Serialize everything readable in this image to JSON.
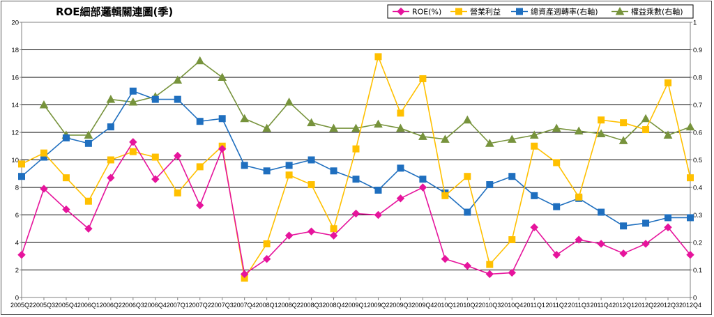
{
  "chart_data": {
    "type": "line",
    "title": "ROE細部邏輯關連圖(季)",
    "xlabel": "",
    "ylabel": "",
    "ylim": [
      0,
      20
    ],
    "y2lim": [
      0,
      1
    ],
    "yticks": [
      0,
      2,
      4,
      6,
      8,
      10,
      12,
      14,
      16,
      18,
      20
    ],
    "y2ticks": [
      0,
      0.1,
      0.2,
      0.3,
      0.4,
      0.5,
      0.6,
      0.7,
      0.8,
      0.9,
      1
    ],
    "grid": true,
    "legend_position": "top-right",
    "categories": [
      "2005Q2",
      "2005Q3",
      "2005Q4",
      "2006Q1",
      "2006Q2",
      "2006Q3",
      "2006Q4",
      "2007Q1",
      "2007Q2",
      "2007Q3",
      "2007Q4",
      "2008Q1",
      "2008Q2",
      "2008Q3",
      "2008Q4",
      "2009Q1",
      "2009Q2",
      "2009Q3",
      "2009Q4",
      "2010Q1",
      "2010Q2",
      "2010Q3",
      "2010Q4",
      "2011Q1",
      "2011Q2",
      "2011Q3",
      "2011Q4",
      "2012Q1",
      "2012Q2",
      "2012Q3",
      "2012Q4"
    ],
    "series": [
      {
        "name": "ROE(%)",
        "axis": "left",
        "color": "#e6149c",
        "marker": "diamond",
        "values": [
          3.1,
          7.9,
          6.4,
          5.0,
          8.7,
          11.3,
          8.6,
          10.3,
          6.7,
          10.8,
          1.7,
          2.8,
          4.5,
          4.8,
          4.5,
          6.1,
          6.0,
          7.2,
          8.0,
          2.8,
          2.3,
          1.7,
          1.8,
          5.1,
          3.1,
          4.2,
          3.9,
          3.2,
          3.9,
          5.1,
          3.1
        ]
      },
      {
        "name": "營業利益",
        "axis": "left",
        "color": "#ffc000",
        "marker": "square",
        "values": [
          9.7,
          10.5,
          8.7,
          7.0,
          10.0,
          10.6,
          10.2,
          7.6,
          9.5,
          11.0,
          1.4,
          3.9,
          8.9,
          8.2,
          5.0,
          10.8,
          17.5,
          13.4,
          15.9,
          7.4,
          8.8,
          2.4,
          4.2,
          11.0,
          9.8,
          7.3,
          12.9,
          12.7,
          12.2,
          15.6,
          8.7
        ]
      },
      {
        "name": "總資產週轉率(右軸)",
        "axis": "right",
        "color": "#1f6fbf",
        "marker": "square",
        "values": [
          0.44,
          0.51,
          0.58,
          0.56,
          0.62,
          0.75,
          0.72,
          0.72,
          0.64,
          0.65,
          0.48,
          0.46,
          0.48,
          0.5,
          0.46,
          0.43,
          0.39,
          0.47,
          0.43,
          0.38,
          0.31,
          0.41,
          0.44,
          0.37,
          0.33,
          0.36,
          0.31,
          0.26,
          0.27,
          0.29,
          0.29
        ]
      },
      {
        "name": "權益乘數(右軸)",
        "axis": "right",
        "color": "#77933c",
        "marker": "triangle",
        "values": [
          null,
          0.7,
          0.59,
          0.59,
          0.72,
          0.71,
          0.73,
          0.79,
          0.86,
          0.8,
          0.65,
          0.615,
          0.71,
          0.635,
          0.615,
          0.615,
          0.63,
          0.615,
          0.585,
          0.575,
          0.645,
          0.56,
          0.575,
          0.59,
          0.615,
          0.605,
          0.595,
          0.57,
          0.65,
          0.59,
          0.62
        ]
      }
    ]
  }
}
